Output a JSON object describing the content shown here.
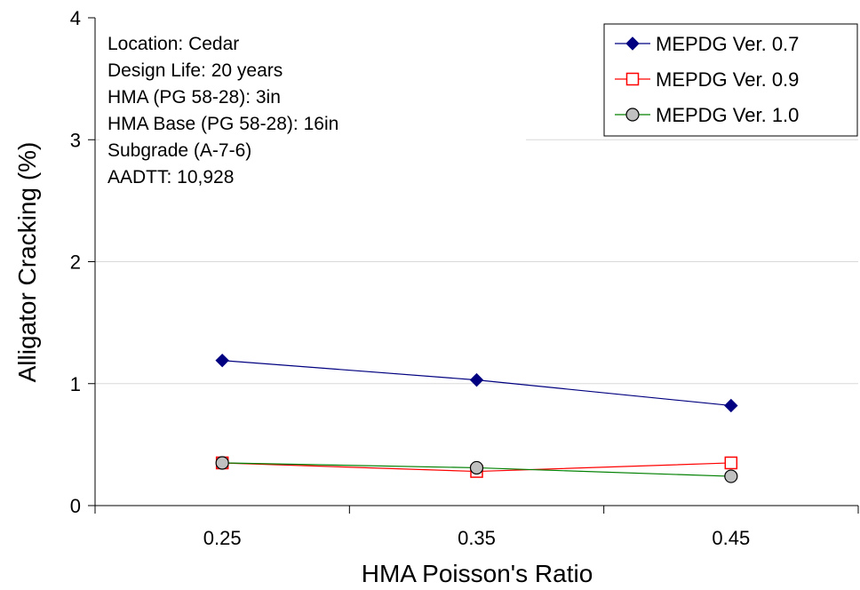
{
  "chart_data": {
    "type": "line",
    "xlabel": "HMA Poisson's Ratio",
    "ylabel": "Alligator Cracking (%)",
    "categories": [
      "0.25",
      "0.35",
      "0.45"
    ],
    "ylim": [
      0,
      4
    ],
    "yticks": [
      "0",
      "1",
      "2",
      "3",
      "4"
    ],
    "grid": "horizontal",
    "legend_position": "top-right",
    "annotations": [
      "Location: Cedar",
      "Design Life: 20 years",
      "HMA (PG 58-28): 3in",
      "HMA Base (PG 58-28): 16in",
      "Subgrade (A-7-6)",
      "AADTT: 10,928"
    ],
    "series": [
      {
        "name": "MEPDG Ver. 0.7",
        "values": [
          1.19,
          1.03,
          0.82
        ],
        "color": "#000080",
        "marker": "diamond"
      },
      {
        "name": "MEPDG Ver. 0.9",
        "values": [
          0.35,
          0.28,
          0.35
        ],
        "color": "#ff0000",
        "marker": "square-open"
      },
      {
        "name": "MEPDG Ver. 1.0",
        "values": [
          0.35,
          0.31,
          0.24
        ],
        "color": "#008000",
        "marker": "circle-gray"
      }
    ]
  }
}
